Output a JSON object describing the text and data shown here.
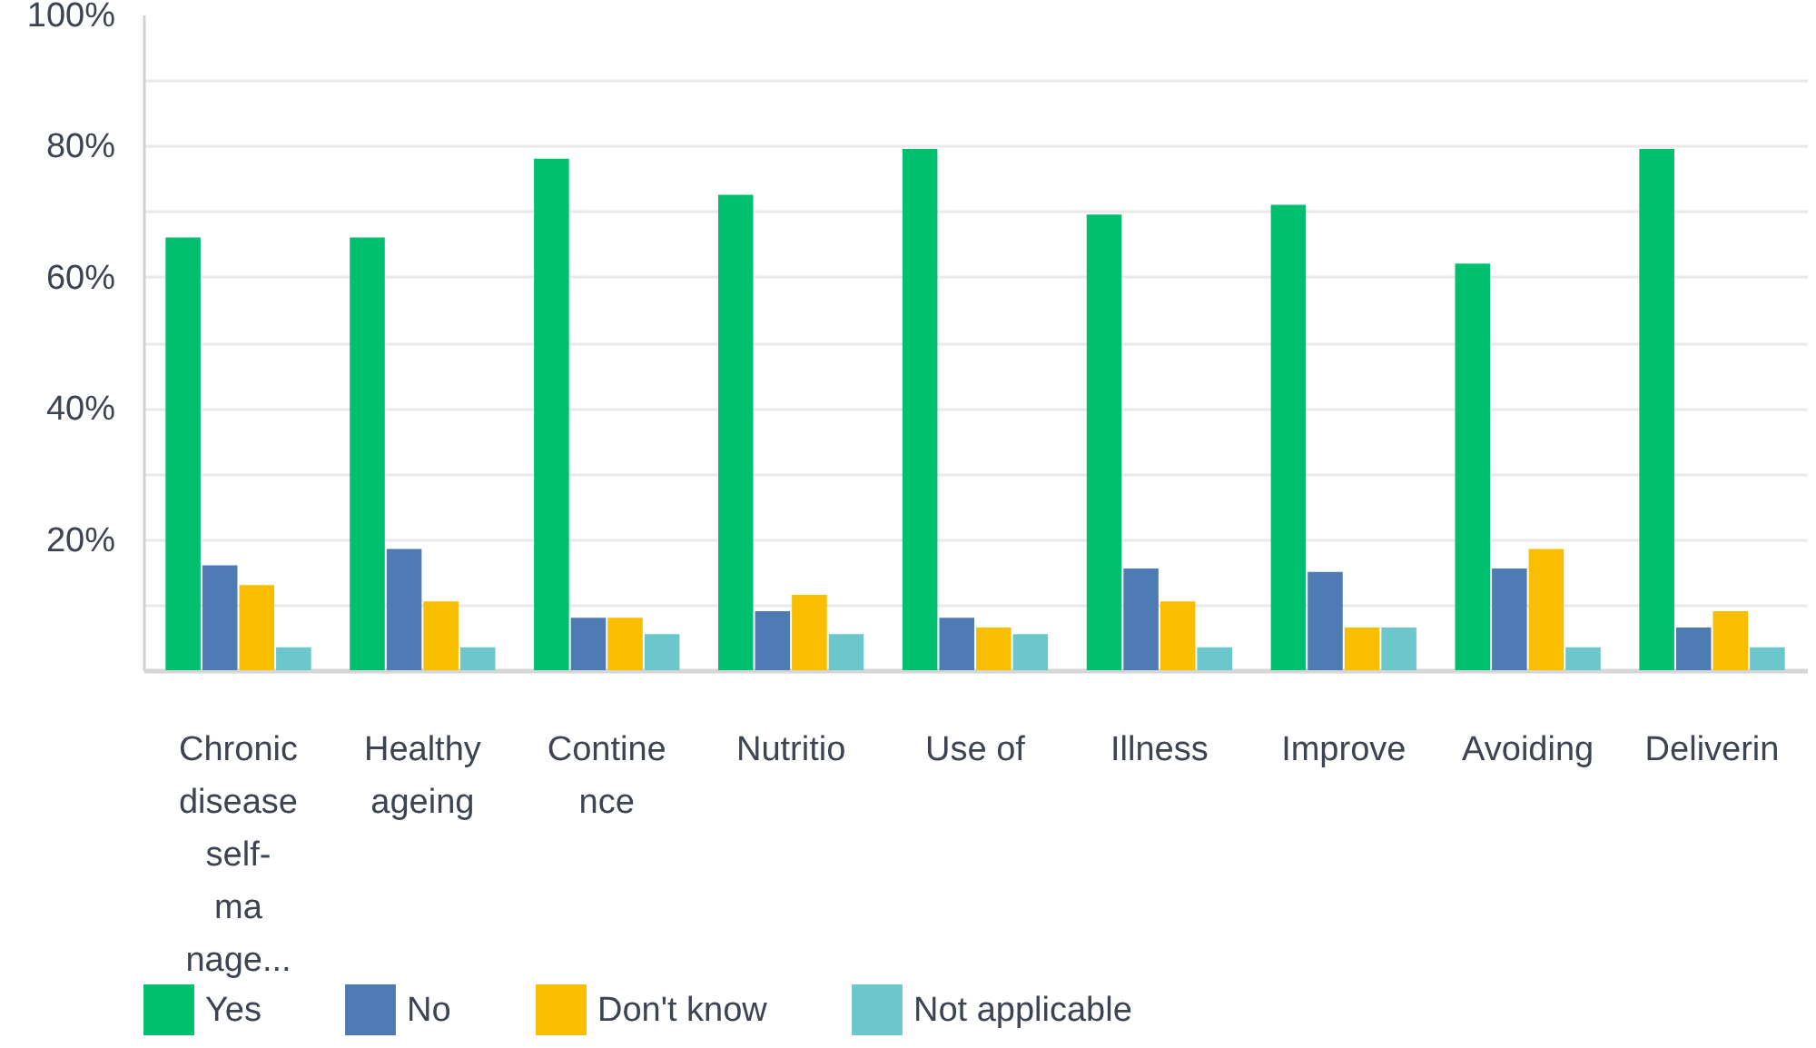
{
  "chart_data": {
    "type": "bar",
    "categories": [
      "Chronic\ndisease\nself-\nma\nnage...",
      "Healthy\nageing",
      "Contine\nnce",
      "Nutritio",
      "Use of",
      "Illness",
      "Improve",
      "Avoiding",
      "Deliverin"
    ],
    "series": [
      {
        "name": "Yes",
        "color": "#00bf6f",
        "values": [
          66,
          66,
          78,
          72.5,
          79.5,
          69.5,
          71,
          62,
          79.5
        ]
      },
      {
        "name": "No",
        "color": "#4f7bb5",
        "values": [
          16,
          18.5,
          8,
          9,
          8,
          15.5,
          15,
          15.5,
          6.5
        ]
      },
      {
        "name": "Don't know",
        "color": "#f9be00",
        "values": [
          13,
          10.5,
          8,
          11.5,
          6.5,
          10.5,
          6.5,
          18.5,
          9
        ]
      },
      {
        "name": "Not applicable",
        "color": "#6cc7cd",
        "values": [
          3.5,
          3.5,
          5.5,
          5.5,
          5.5,
          3.5,
          6.5,
          3.5,
          3.5
        ]
      }
    ],
    "ylim": [
      0,
      100
    ],
    "yticks": [
      {
        "value": 10,
        "label": null
      },
      {
        "value": 20,
        "label": "20%"
      },
      {
        "value": 30,
        "label": null
      },
      {
        "value": 40,
        "label": "40%"
      },
      {
        "value": 50,
        "label": null
      },
      {
        "value": 60,
        "label": "60%"
      },
      {
        "value": 70,
        "label": null
      },
      {
        "value": 80,
        "label": "80%"
      },
      {
        "value": 90,
        "label": null
      },
      {
        "value": 100,
        "label": "100%"
      }
    ],
    "grid": "y",
    "legend": "bottom"
  }
}
